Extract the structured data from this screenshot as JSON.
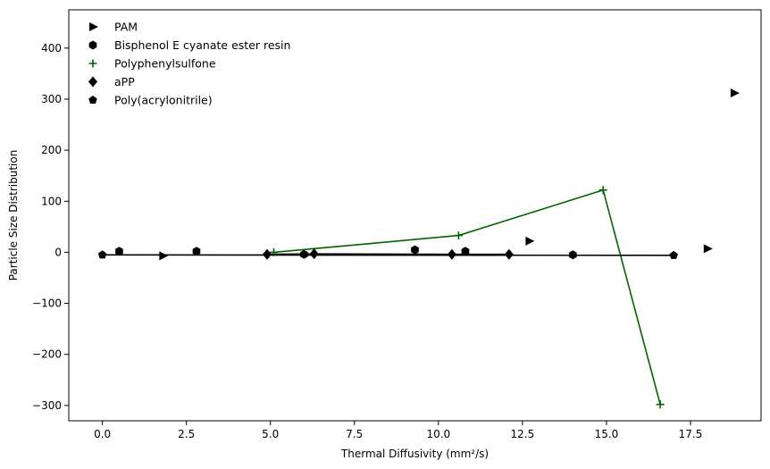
{
  "chart_data": {
    "type": "scatter",
    "xlabel": "Thermal Diffusivity (mm²/s)",
    "ylabel": "Particle Size Distribution",
    "xlim": [
      -1.0,
      19.6
    ],
    "ylim": [
      -330,
      475
    ],
    "x_ticks": [
      0.0,
      2.5,
      5.0,
      7.5,
      10.0,
      12.5,
      15.0,
      17.5
    ],
    "x_tick_labels": [
      "0.0",
      "2.5",
      "5.0",
      "7.5",
      "10.0",
      "12.5",
      "15.0",
      "17.5"
    ],
    "y_ticks": [
      -300,
      -200,
      -100,
      0,
      100,
      200,
      300,
      400
    ],
    "y_tick_labels": [
      "−300",
      "−200",
      "−100",
      "0",
      "100",
      "200",
      "300",
      "400"
    ],
    "grid": false,
    "legend_position": "top-left",
    "series": [
      {
        "name": "PAM",
        "marker": "triangle-right",
        "color": "#000000",
        "line": false,
        "points": [
          [
            1.8,
            -7
          ],
          [
            12.7,
            22
          ],
          [
            18.0,
            7
          ],
          [
            18.8,
            312
          ]
        ]
      },
      {
        "name": "Bisphenol E cyanate ester resin",
        "marker": "hexagon",
        "color": "#000000",
        "line": false,
        "points": [
          [
            0.5,
            2
          ],
          [
            2.8,
            2
          ],
          [
            6.0,
            -4
          ],
          [
            9.3,
            5
          ],
          [
            10.8,
            2
          ],
          [
            14.0,
            -5
          ]
        ]
      },
      {
        "name": "Polyphenylsulfone",
        "marker": "plus",
        "color": "#006400",
        "line": true,
        "points": [
          [
            5.1,
            0
          ],
          [
            10.6,
            33
          ],
          [
            14.9,
            122
          ],
          [
            16.6,
            -298
          ]
        ]
      },
      {
        "name": "aPP",
        "marker": "diamond",
        "color": "#000000",
        "line": true,
        "points": [
          [
            4.9,
            -4
          ],
          [
            6.3,
            -3
          ],
          [
            10.4,
            -4
          ],
          [
            12.1,
            -4
          ]
        ]
      },
      {
        "name": "Poly(acrylonitrile)",
        "marker": "pentagon",
        "color": "#000000",
        "line": true,
        "points": [
          [
            0.0,
            -5
          ],
          [
            17.0,
            -6
          ]
        ]
      }
    ]
  }
}
